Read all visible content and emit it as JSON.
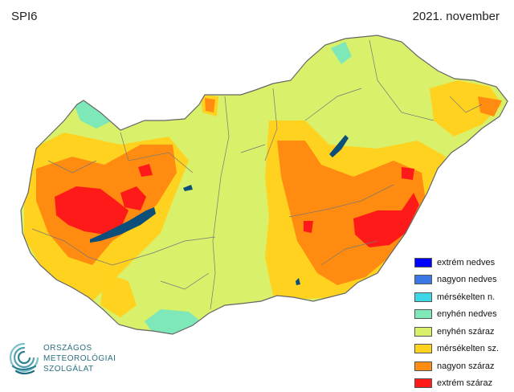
{
  "header": {
    "index": "SPI6",
    "period": "2021. november"
  },
  "legend": {
    "items": [
      {
        "label": "extrém nedves",
        "color": "#0000ff"
      },
      {
        "label": "nagyon nedves",
        "color": "#3a78e6"
      },
      {
        "label": "mérsékelten n.",
        "color": "#3fd6e8"
      },
      {
        "label": "enyhén nedves",
        "color": "#7ee8b8"
      },
      {
        "label": "enyhén száraz",
        "color": "#d9f06a"
      },
      {
        "label": "mérsékelten sz.",
        "color": "#ffd21f"
      },
      {
        "label": "nagyon száraz",
        "color": "#ff8c10"
      },
      {
        "label": "extrém száraz",
        "color": "#ff1a1a"
      }
    ]
  },
  "logo": {
    "line1": "ORSZÁGOS",
    "line2": "METEOROLÓGIAI",
    "line3": "SZOLGÁLAT"
  },
  "colors": {
    "lakes": "#0b4f7a",
    "borders": "#666666"
  }
}
